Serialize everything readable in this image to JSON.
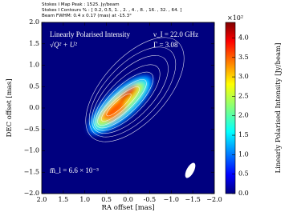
{
  "chart_data": {
    "type": "image",
    "header": [
      "Stokes I Map Peak : 1525. Jy/beam",
      "Stokes I Contours % : [ 0.2, 0.5, 1. , 2. , 4. , 8. , 16. , 32. , 64. ]",
      "Beam FWHM: 0.4 x 0.17 (mas) at -15.3°"
    ],
    "xlabel": "RA offset [mas]",
    "ylabel": "DEC offset [mas]",
    "xlim": [
      2,
      -2
    ],
    "ylim": [
      -2,
      2
    ],
    "xticks": [
      {
        "value": 2,
        "label": "2.0"
      },
      1.5,
      {
        "value": 1,
        "label": "1.0"
      },
      0.5,
      {
        "value": 0,
        "label": "0.0"
      },
      -0.5,
      {
        "value": -1,
        "label": "−1.0"
      },
      {
        "value": -1.5,
        "label": "−1.5"
      },
      {
        "value": -2,
        "label": "−2.0"
      }
    ],
    "yticks": [
      {
        "value": -2,
        "label": "−2.0"
      },
      {
        "value": -1.5,
        "label": "−1.5"
      },
      {
        "value": -1,
        "label": "−1.0"
      },
      {
        "value": -0.5,
        "label": "−0.5"
      },
      {
        "value": 0,
        "label": "0.0"
      },
      0.5,
      {
        "value": 1,
        "label": "1.0"
      },
      1.5,
      {
        "value": 2,
        "label": "2.0"
      }
    ],
    "colorbar": {
      "label": "Linearly Polarised Intensity [Jy/beam]",
      "multiplier": "×10²",
      "clim": [
        0,
        4.4
      ],
      "ticks": [
        {
          "value": 0,
          "label": "0.0"
        },
        0.5,
        {
          "value": 1,
          "label": "1.0"
        },
        1.5,
        {
          "value": 2,
          "label": "2.0"
        },
        2.5,
        {
          "value": 3,
          "label": "3.0"
        },
        3.5,
        {
          "value": 4,
          "label": "4.0"
        }
      ]
    },
    "annotations": [
      "Linearly Polarised Intensity",
      "√Q² + U²",
      "ν_I = 22.0 GHz",
      "Γ = 3.08",
      "m̅_l = 6.6 × 10⁻³"
    ]
  }
}
